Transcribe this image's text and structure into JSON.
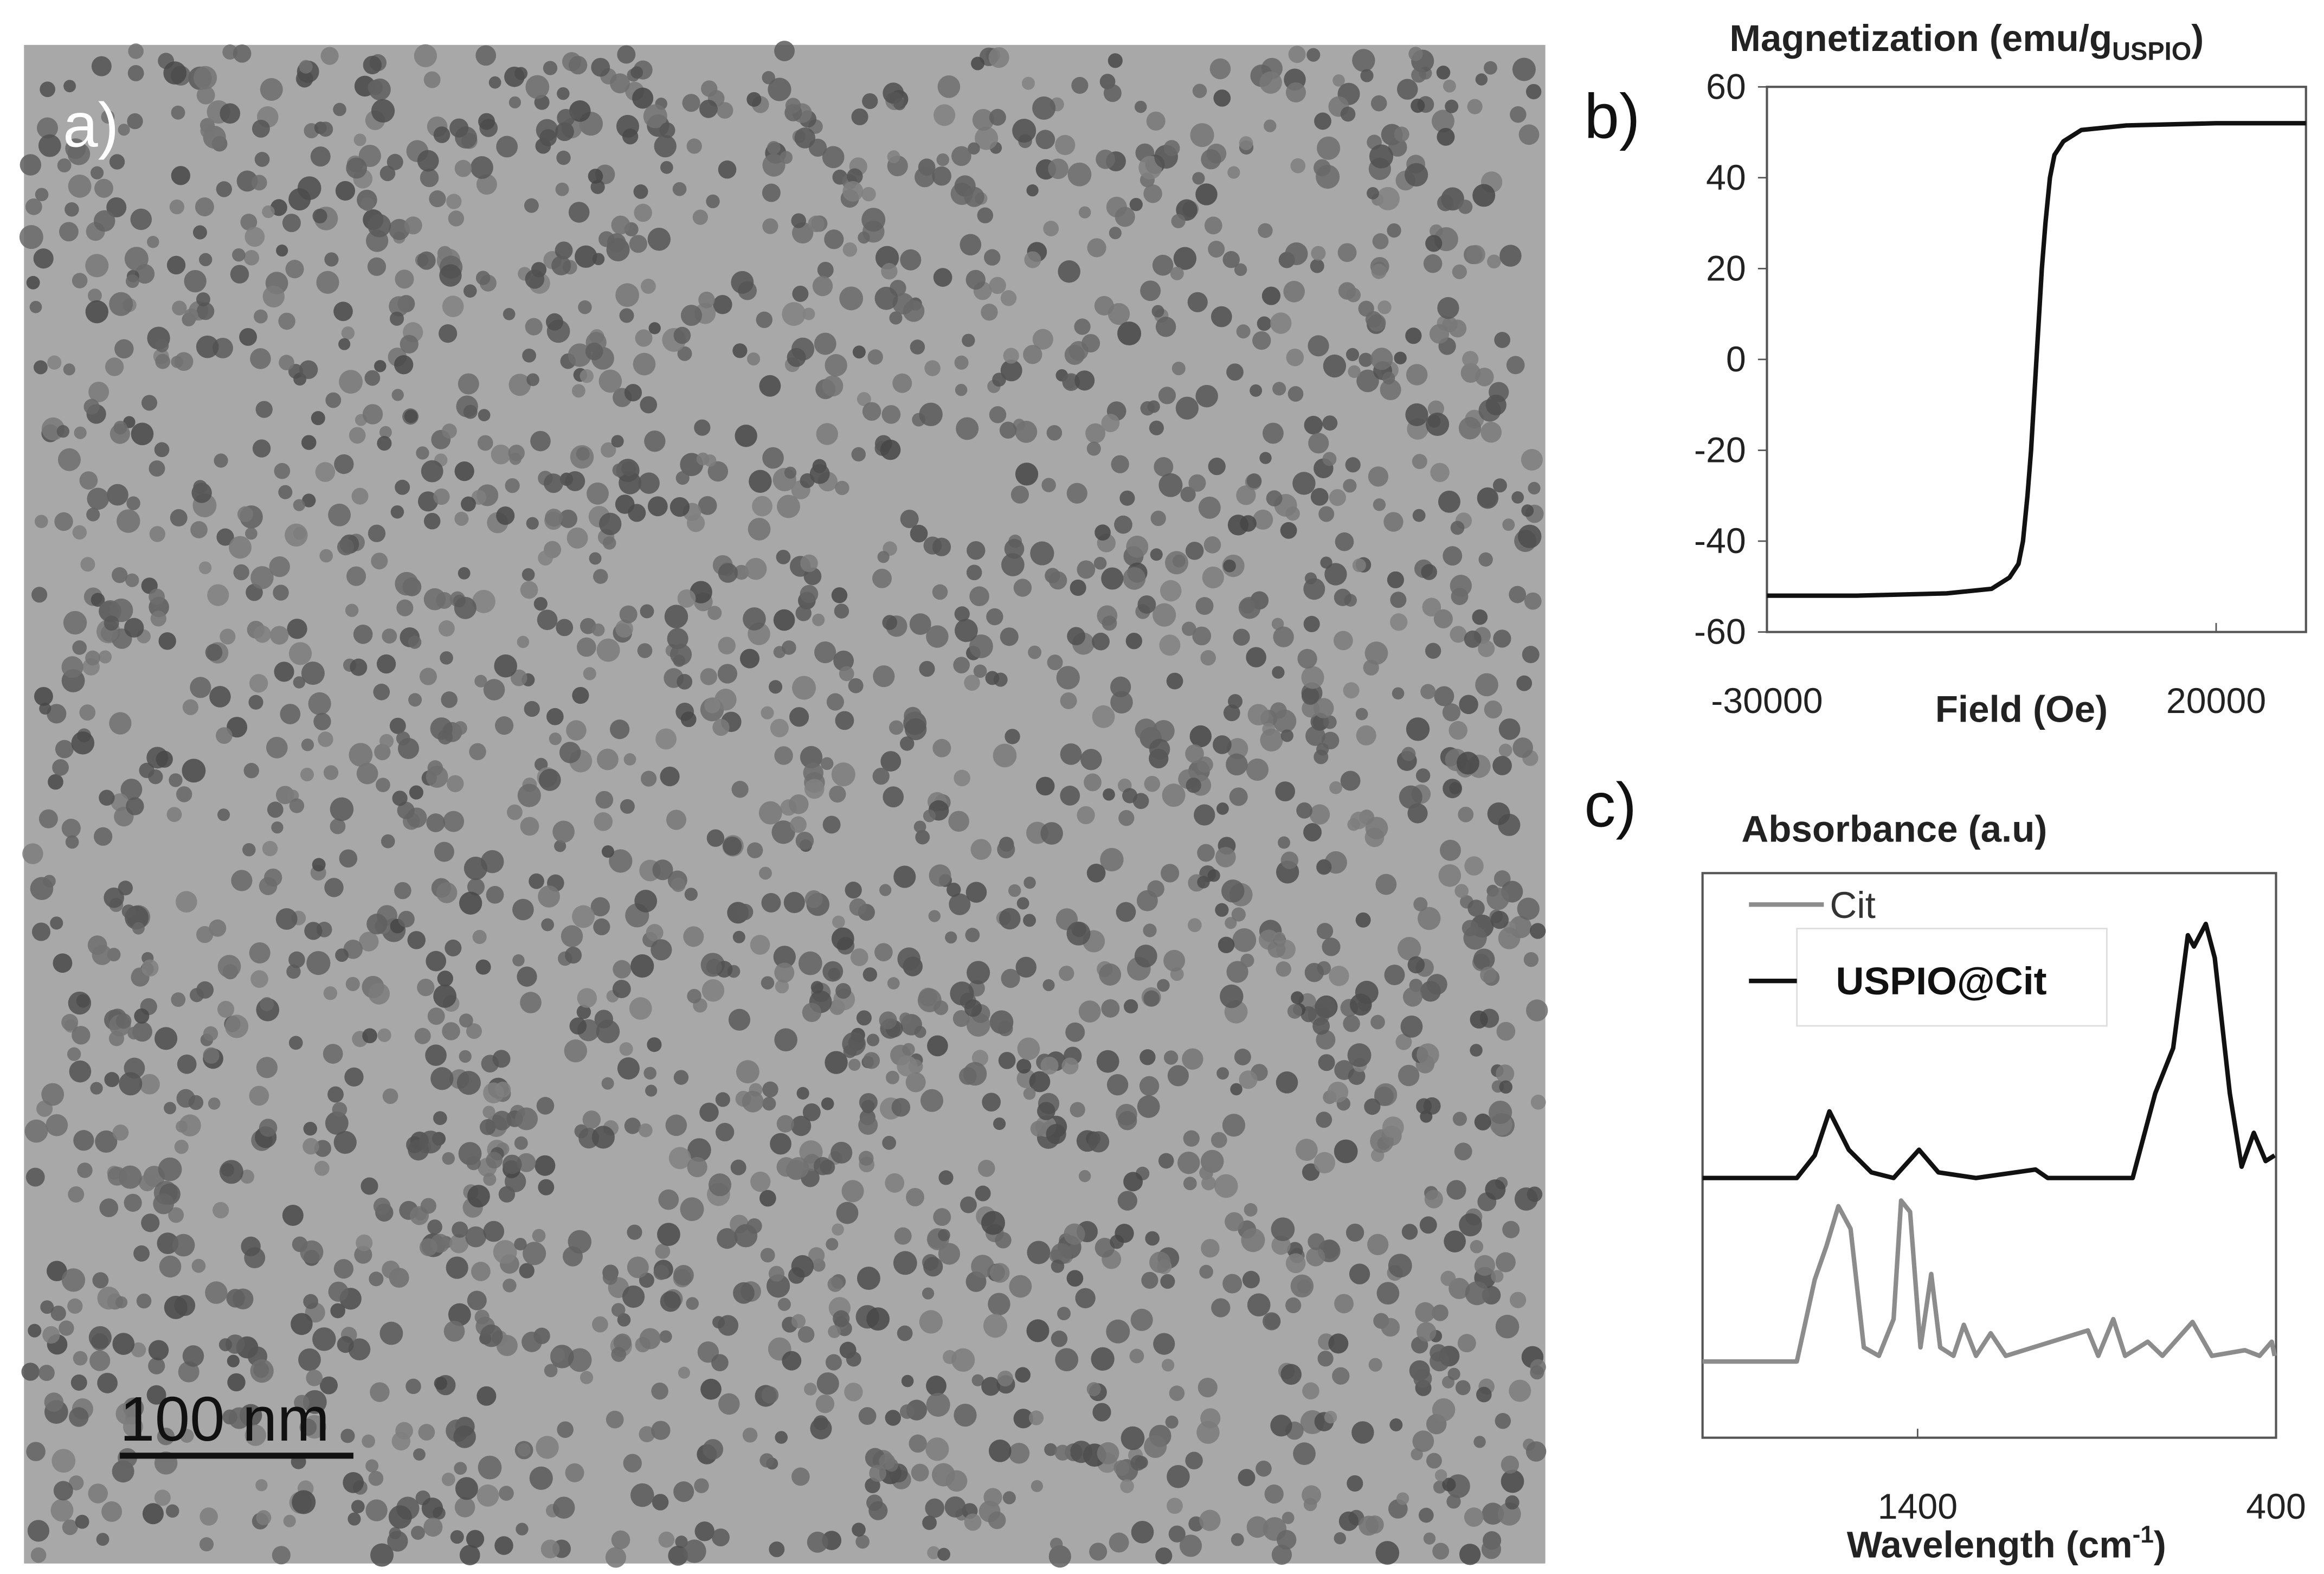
{
  "panel_labels": [
    "a)",
    "b)",
    "c)"
  ],
  "scale_bar": "100  nm",
  "chart_data": [
    {
      "type": "line",
      "ylabel": [
        "Magnetization (emu/g",
        "USPIO",
        ")"
      ],
      "xlabel": "Field (Oe)",
      "color": "#111111",
      "x": [
        -30000,
        -20000,
        -10000,
        -5000,
        -3000,
        -2000,
        -1500,
        -1000,
        -600,
        -300,
        0,
        300,
        600,
        1000,
        1500,
        2000,
        3000,
        5000,
        10000,
        20000,
        30000
      ],
      "values": [
        -52,
        -52,
        -51.5,
        -50.5,
        -48,
        -45,
        -40,
        -30,
        -20,
        -10,
        0,
        10,
        20,
        30,
        40,
        45,
        48,
        50.5,
        51.5,
        52,
        52
      ],
      "xlim": [
        -30000,
        30000
      ],
      "xticks": [
        -30000,
        20000
      ],
      "ylim": [
        -60,
        60
      ],
      "yticks": [
        -60,
        -40,
        -20,
        0,
        20,
        40,
        60
      ]
    },
    {
      "type": "line",
      "ylabel": "Absorbance (a.u)",
      "xlabel": [
        "Wavelength (cm",
        "-1",
        ")"
      ],
      "xlim": [
        2000,
        400
      ],
      "xticks": [
        1400,
        400
      ],
      "ylim": [
        0,
        100
      ],
      "series": [
        {
          "name": "Cit",
          "color": "#8c8c8c",
          "x": [
            2000,
            1737,
            1687,
            1654,
            1621,
            1587,
            1550,
            1508,
            1467,
            1446,
            1421,
            1392,
            1362,
            1337,
            1300,
            1271,
            1237,
            1196,
            1154,
            925,
            896,
            854,
            821,
            758,
            717,
            633,
            579,
            487,
            446,
            412,
            404
          ],
          "values": [
            13.5,
            13.5,
            28,
            34,
            41,
            37,
            16,
            14.5,
            21,
            42,
            40,
            16,
            29,
            16,
            14.5,
            20,
            14.5,
            18.5,
            14.5,
            19,
            14.5,
            21,
            14.5,
            17,
            14.5,
            20.5,
            14.5,
            15.5,
            14.5,
            17,
            14.5
          ]
        },
        {
          "name": "USPIO@Cit",
          "color": "#111111",
          "x": [
            2000,
            1737,
            1687,
            1646,
            1592,
            1529,
            1467,
            1396,
            1342,
            1237,
            1071,
            1037,
            800,
            737,
            687,
            646,
            629,
            596,
            571,
            529,
            496,
            462,
            429,
            404
          ],
          "values": [
            46,
            46,
            50,
            57.8,
            51,
            47,
            46,
            51,
            47,
            46,
            47.5,
            46,
            46,
            61,
            69,
            89,
            87,
            91,
            85,
            61,
            48,
            54,
            49,
            50
          ]
        }
      ]
    }
  ]
}
